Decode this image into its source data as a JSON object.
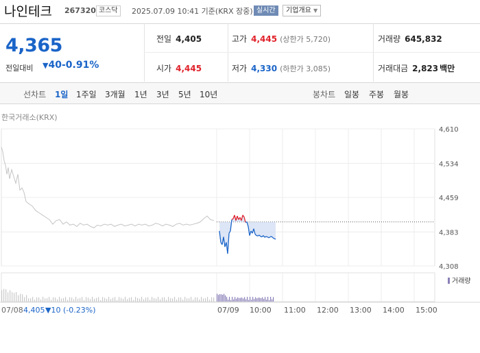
{
  "header": {
    "name": "나인테크",
    "code": "267320",
    "market": "코스닥",
    "timestamp": "2025.07.09 10:41 기준(KRX 장중)",
    "realtime_label": "실시간",
    "company_info_label": "기업개요"
  },
  "quote": {
    "price": "4,365",
    "change_label": "전일대비",
    "change": "40",
    "change_pct": "-0.91%",
    "prev_close_label": "전일",
    "prev_close": "4,405",
    "high_label": "고가",
    "high": "4,445",
    "upper_limit": "(상한가 5,720)",
    "volume_label": "거래량",
    "volume": "645,832",
    "open_label": "시가",
    "open": "4,445",
    "low_label": "저가",
    "low": "4,330",
    "lower_limit": "(하한가 3,085)",
    "amount_label": "거래대금",
    "amount": "2,823",
    "amount_unit": "백만"
  },
  "tabs": {
    "line_label": "선차트",
    "line_periods": [
      "1일",
      "1주일",
      "3개월",
      "1년",
      "3년",
      "5년",
      "10년"
    ],
    "candle_label": "봉차트",
    "candle_periods": [
      "일봉",
      "주봉",
      "월봉"
    ]
  },
  "chart_source": "한국거래소(KRX)",
  "volume_legend": "거래량",
  "bottom_info": {
    "date": "07/08",
    "price": "4,405",
    "change": "10",
    "change_pct": "(-0.23%)"
  },
  "colors": {
    "up": "#e0212a",
    "down": "#1a64c8",
    "prev_day": "#c4c4c4"
  },
  "chart_data": {
    "type": "line",
    "ylim": [
      4308,
      4610
    ],
    "yticks": [
      "4,610",
      "4,534",
      "4,459",
      "4,383",
      "4,308"
    ],
    "xticks": [
      "07/08",
      "07/09",
      "10:00",
      "11:00",
      "12:00",
      "13:00",
      "14:00",
      "15:00"
    ],
    "reference_price": 4405,
    "series": [
      {
        "x": [
          0,
          2,
          4,
          6,
          8,
          10,
          12,
          15,
          18,
          21,
          24,
          27,
          30,
          33,
          36,
          40,
          45,
          50,
          55,
          60,
          65,
          70,
          75,
          80,
          85,
          90,
          95,
          100,
          105,
          110,
          115,
          120,
          125,
          130,
          135,
          140,
          145,
          150,
          155,
          160,
          165,
          170,
          175,
          180,
          185,
          190,
          195,
          200,
          205,
          210,
          215,
          220,
          225,
          230,
          235,
          240,
          245,
          250,
          255,
          260,
          265,
          270,
          275,
          280,
          285,
          290,
          295,
          300,
          305,
          310
        ],
        "values": [
          4570,
          4560,
          4540,
          4530,
          4510,
          4525,
          4500,
          4520,
          4505,
          4490,
          4510,
          4475,
          4480,
          4470,
          4450,
          4445,
          4440,
          4430,
          4425,
          4420,
          4415,
          4410,
          4400,
          4408,
          4410,
          4400,
          4405,
          4398,
          4400,
          4395,
          4402,
          4398,
          4400,
          4395,
          4392,
          4398,
          4396,
          4400,
          4398,
          4400,
          4395,
          4398,
          4400,
          4396,
          4398,
          4400,
          4396,
          4400,
          4398,
          4400,
          4396,
          4398,
          4402,
          4400,
          4396,
          4400,
          4398,
          4395,
          4400,
          4402,
          4398,
          4400,
          4398,
          4400,
          4402,
          4405,
          4412,
          4418,
          4410,
          4408
        ]
      },
      {
        "x": [
          318,
          320,
          322,
          324,
          326,
          328,
          330,
          332,
          334,
          336,
          338,
          340,
          342,
          344,
          346,
          348,
          350,
          352,
          354,
          356,
          358,
          360,
          362,
          364,
          366,
          368,
          370,
          372,
          374,
          376,
          378,
          380,
          382,
          384,
          386,
          388,
          390,
          392,
          394,
          396,
          398,
          400
        ],
        "values": [
          4385,
          4360,
          4355,
          4372,
          4350,
          4360,
          4335,
          4380,
          4385,
          4410,
          4412,
          4420,
          4408,
          4418,
          4410,
          4415,
          4408,
          4420,
          4416,
          4404,
          4405,
          4395,
          4375,
          4385,
          4380,
          4390,
          4378,
          4375,
          4374,
          4376,
          4373,
          4372,
          4375,
          4371,
          4373,
          4372,
          4370,
          4372,
          4373,
          4370,
          4368,
          4367
        ]
      }
    ]
  }
}
